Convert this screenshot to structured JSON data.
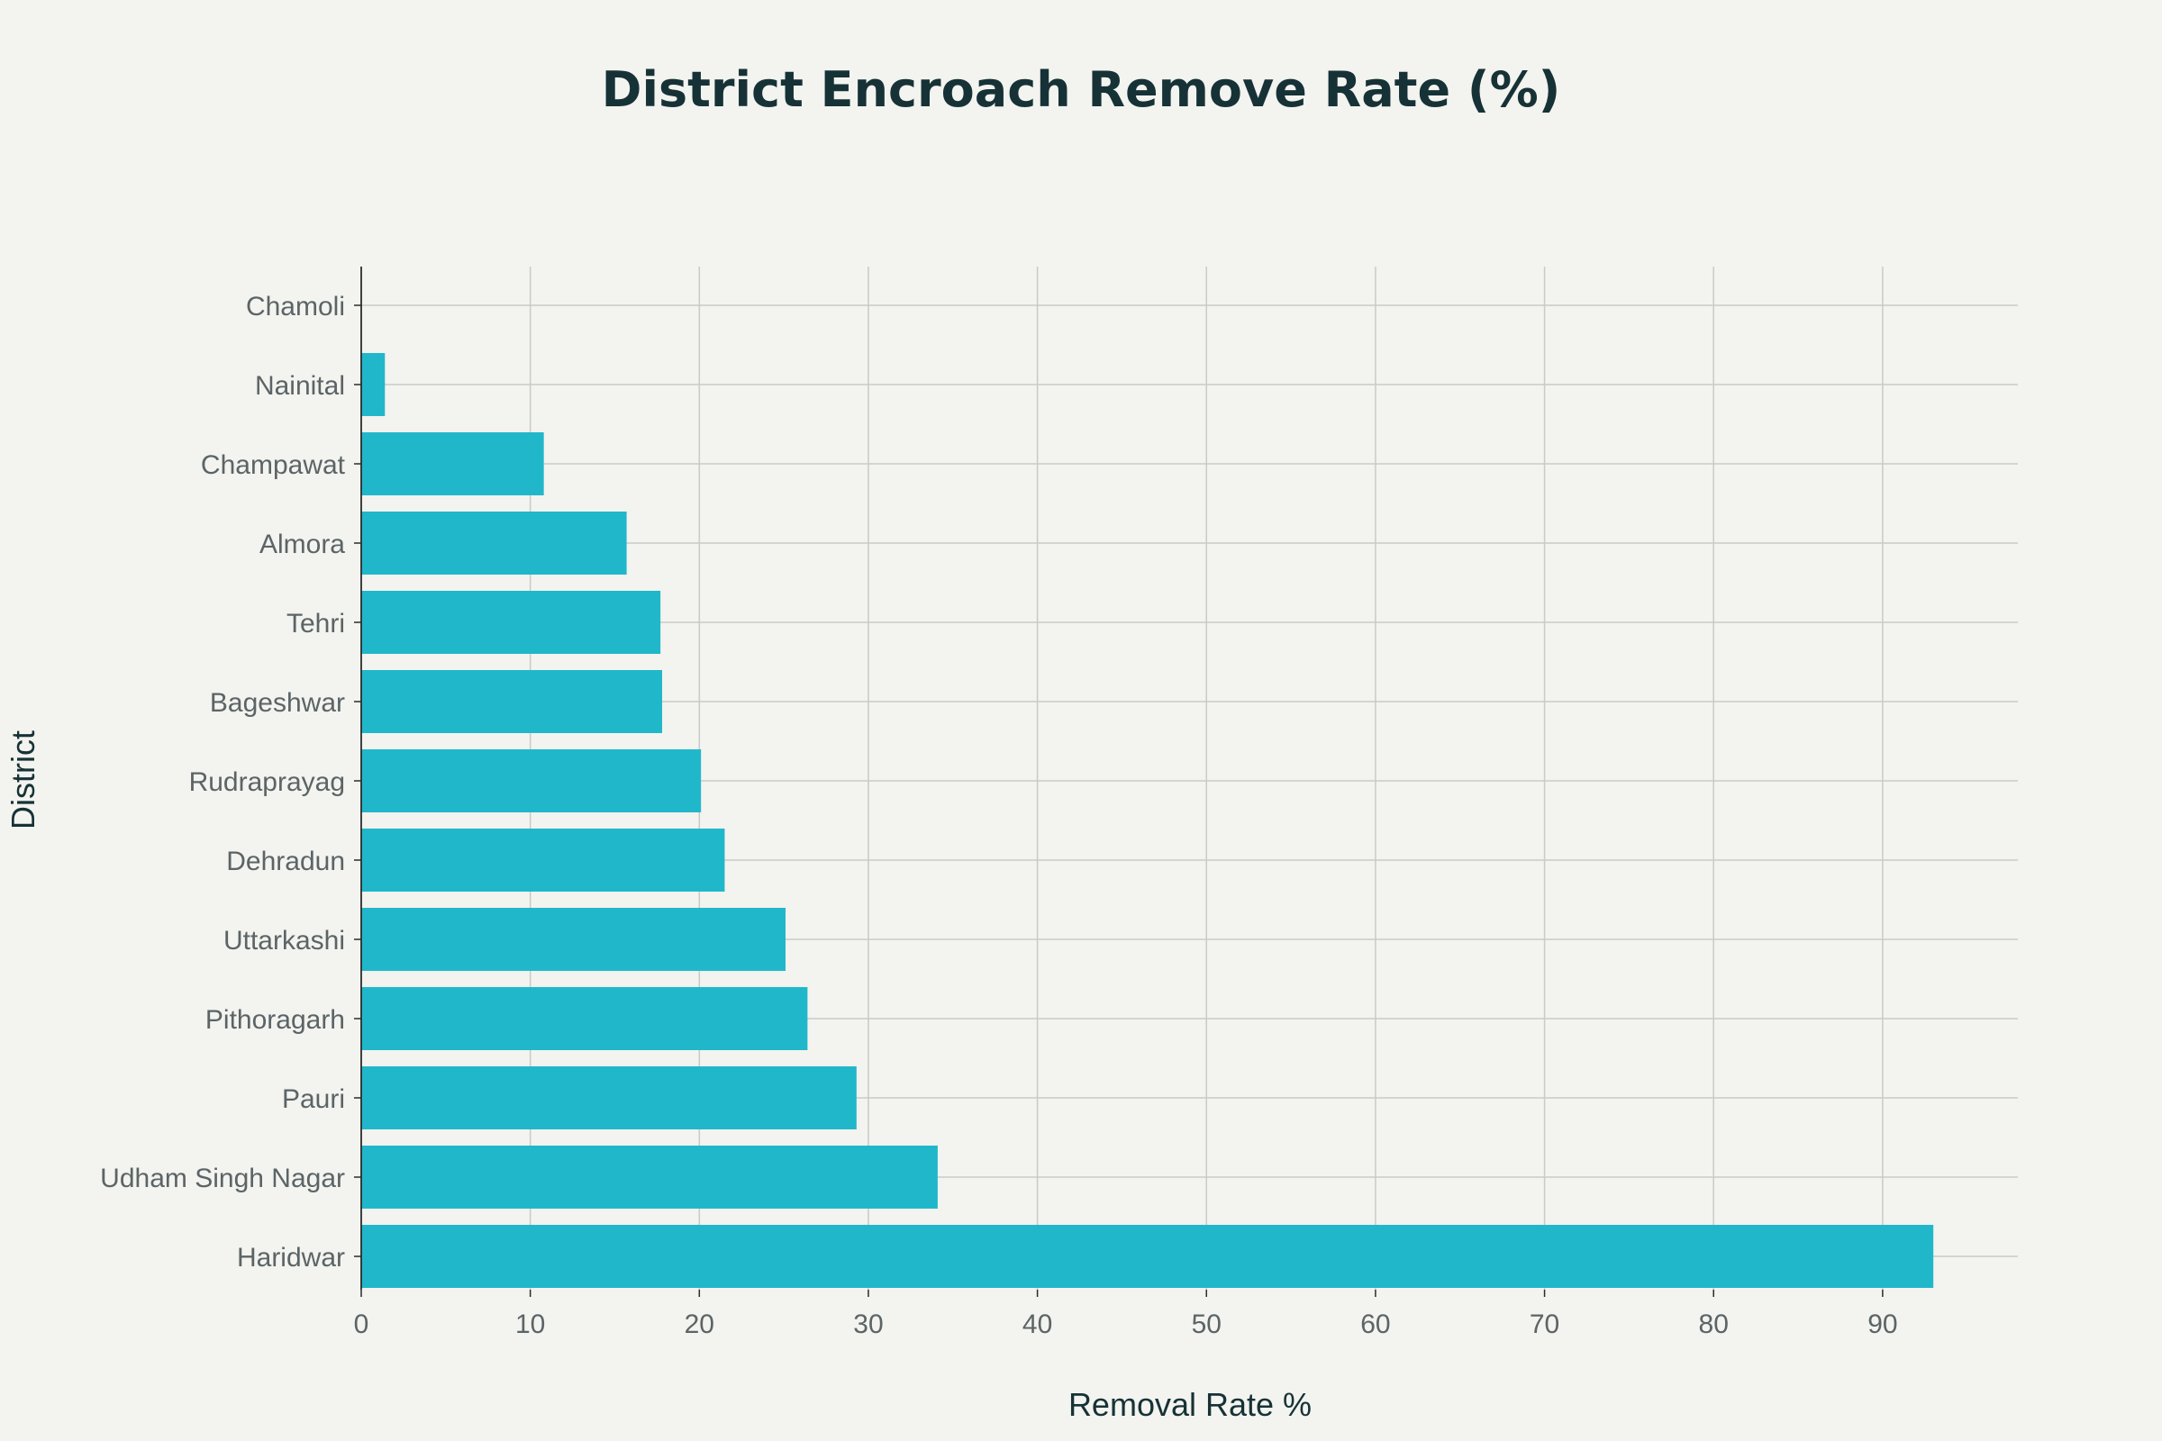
{
  "chart_data": {
    "type": "bar",
    "orientation": "horizontal",
    "title": "District Encroach Remove Rate (%)",
    "xlabel": "Removal Rate %",
    "ylabel": "District",
    "xlim": [
      0,
      98
    ],
    "xticks": [
      0,
      10,
      20,
      30,
      40,
      50,
      60,
      70,
      80,
      90
    ],
    "grid": true,
    "legend": "none",
    "bar_color": "#21b7cb",
    "categories": [
      "Chamoli",
      "Nainital",
      "Champawat",
      "Almora",
      "Tehri",
      "Bageshwar",
      "Rudraprayag",
      "Dehradun",
      "Uttarkashi",
      "Pithoragarh",
      "Pauri",
      "Udham Singh Nagar",
      "Haridwar"
    ],
    "values": [
      0,
      1.4,
      10.8,
      15.7,
      17.7,
      17.8,
      20.1,
      21.5,
      25.1,
      26.4,
      29.3,
      34.1,
      93.0
    ]
  }
}
